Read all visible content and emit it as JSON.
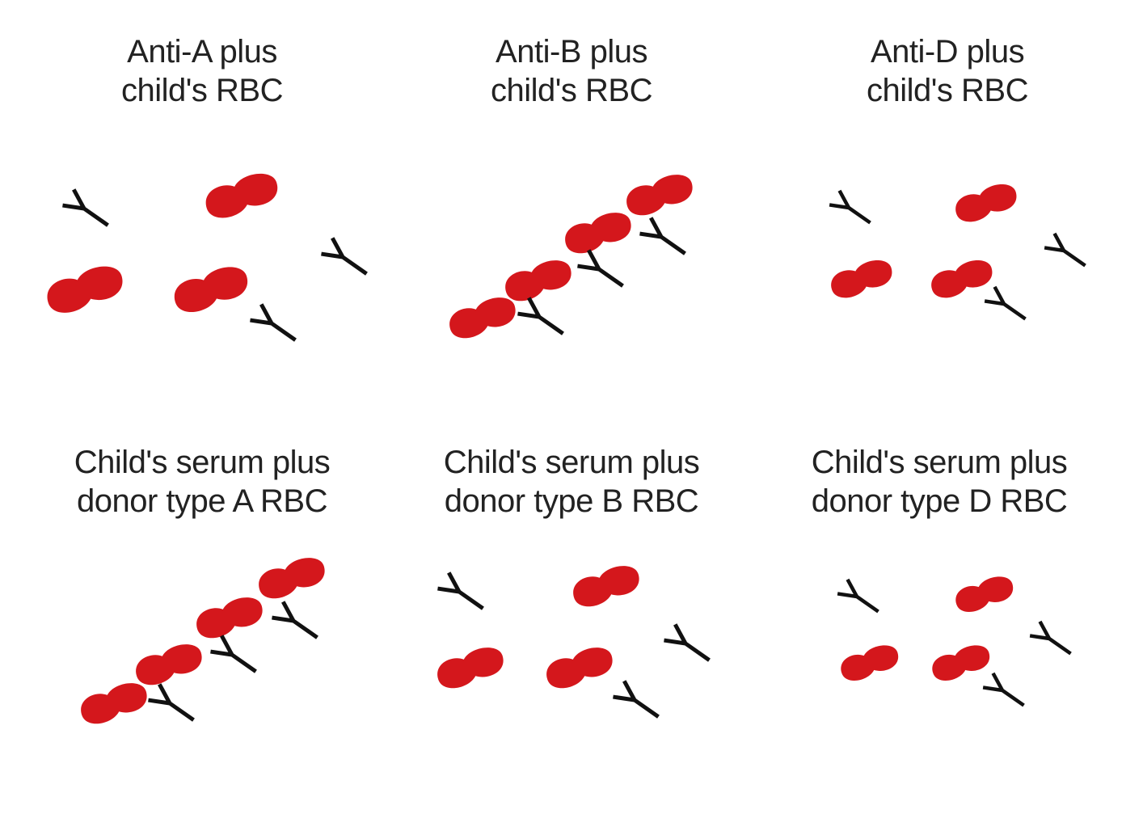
{
  "colors": {
    "rbc": "#d4171c",
    "antibody": "#111111",
    "text": "#222222",
    "background": "#ffffff"
  },
  "panels": [
    {
      "id": "anti-a",
      "line1": "Anti-A plus",
      "line2": "child's RBC",
      "agglutinated": false
    },
    {
      "id": "anti-b",
      "line1": "Anti-B plus",
      "line2": "child's RBC",
      "agglutinated": true
    },
    {
      "id": "anti-d",
      "line1": "Anti-D plus",
      "line2": "child's RBC",
      "agglutinated": false
    },
    {
      "id": "serum-a",
      "line1": "Child's serum plus",
      "line2": "donor type A RBC",
      "agglutinated": true
    },
    {
      "id": "serum-b",
      "line1": "Child's serum plus",
      "line2": "donor type B RBC",
      "agglutinated": false
    },
    {
      "id": "serum-d",
      "line1": "Child's serum plus",
      "line2": "donor type D RBC",
      "agglutinated": false
    }
  ]
}
